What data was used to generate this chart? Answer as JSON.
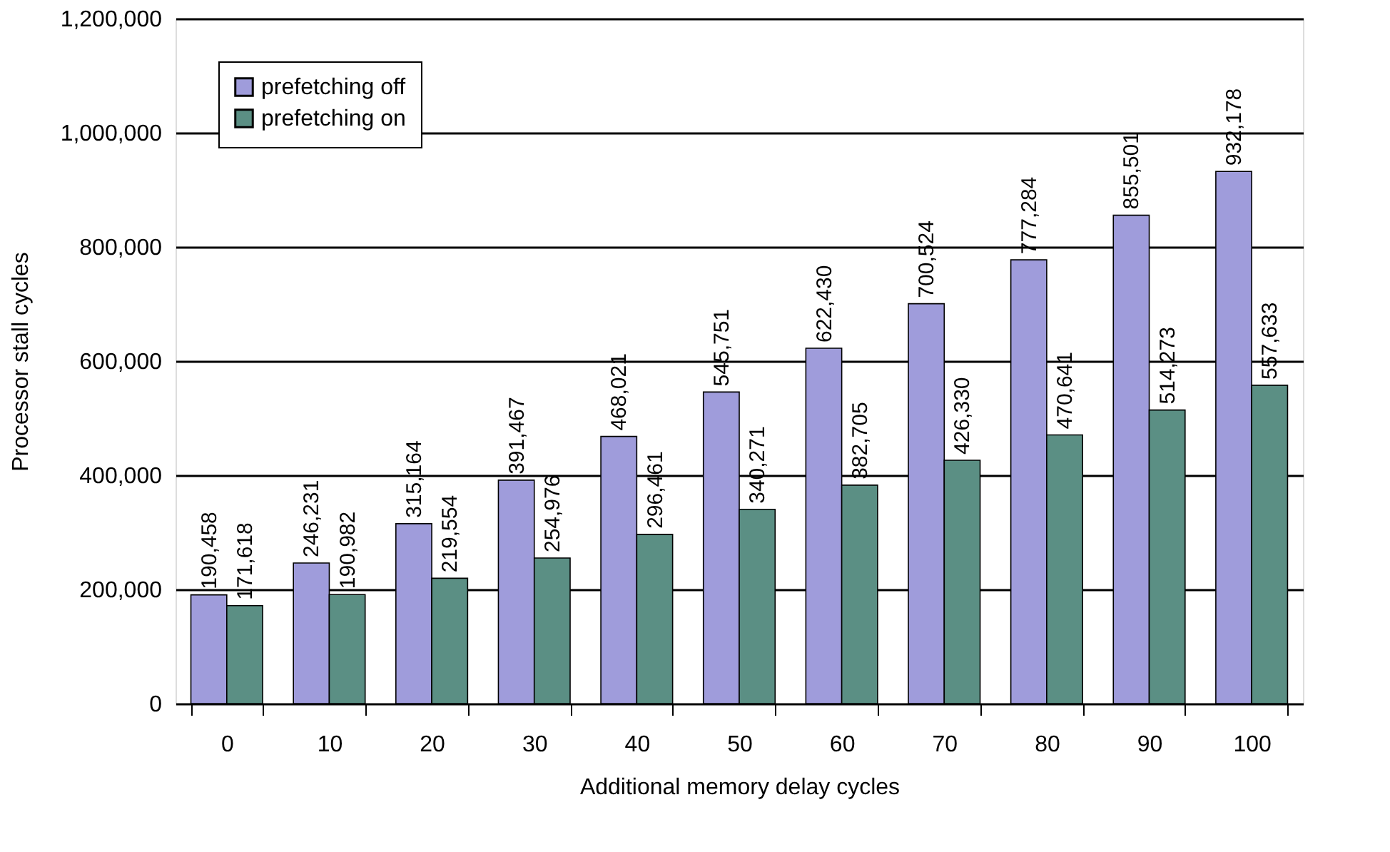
{
  "chart_data": {
    "type": "bar",
    "xlabel": "Additional memory delay cycles",
    "ylabel": "Processor stall cycles",
    "categories": [
      "0",
      "10",
      "20",
      "30",
      "40",
      "50",
      "60",
      "70",
      "80",
      "90",
      "100"
    ],
    "series": [
      {
        "name": "prefetching off",
        "color": "#9f9cdb",
        "values": [
          190458,
          246231,
          315164,
          391467,
          468021,
          545751,
          622430,
          700524,
          777284,
          855501,
          932178
        ],
        "value_labels": [
          "190,458",
          "246,231",
          "315,164",
          "391,467",
          "468,021",
          "545,751",
          "622,430",
          "700,524",
          "777,284",
          "855,501",
          "932,178"
        ]
      },
      {
        "name": "prefetching on",
        "color": "#5b8f84",
        "values": [
          171618,
          190982,
          219554,
          254976,
          296461,
          340271,
          382705,
          426330,
          470641,
          514273,
          557633
        ],
        "value_labels": [
          "171,618",
          "190,982",
          "219,554",
          "254,976",
          "296,461",
          "340,271",
          "382,705",
          "426,330",
          "470,641",
          "514,273",
          "557,633"
        ]
      }
    ],
    "ylim": [
      0,
      1200000
    ],
    "yticks": [
      0,
      {
        "value": 200000,
        "label": "200,000"
      },
      {
        "value": 400000,
        "label": "400,000"
      },
      {
        "value": 600000,
        "label": "600,000"
      },
      {
        "value": 800000,
        "label": "800,000"
      },
      {
        "value": 1000000,
        "label": "1,000,000"
      },
      {
        "value": 1200000,
        "label": "1,200,000"
      }
    ],
    "grid": "y",
    "legend": "top left"
  }
}
